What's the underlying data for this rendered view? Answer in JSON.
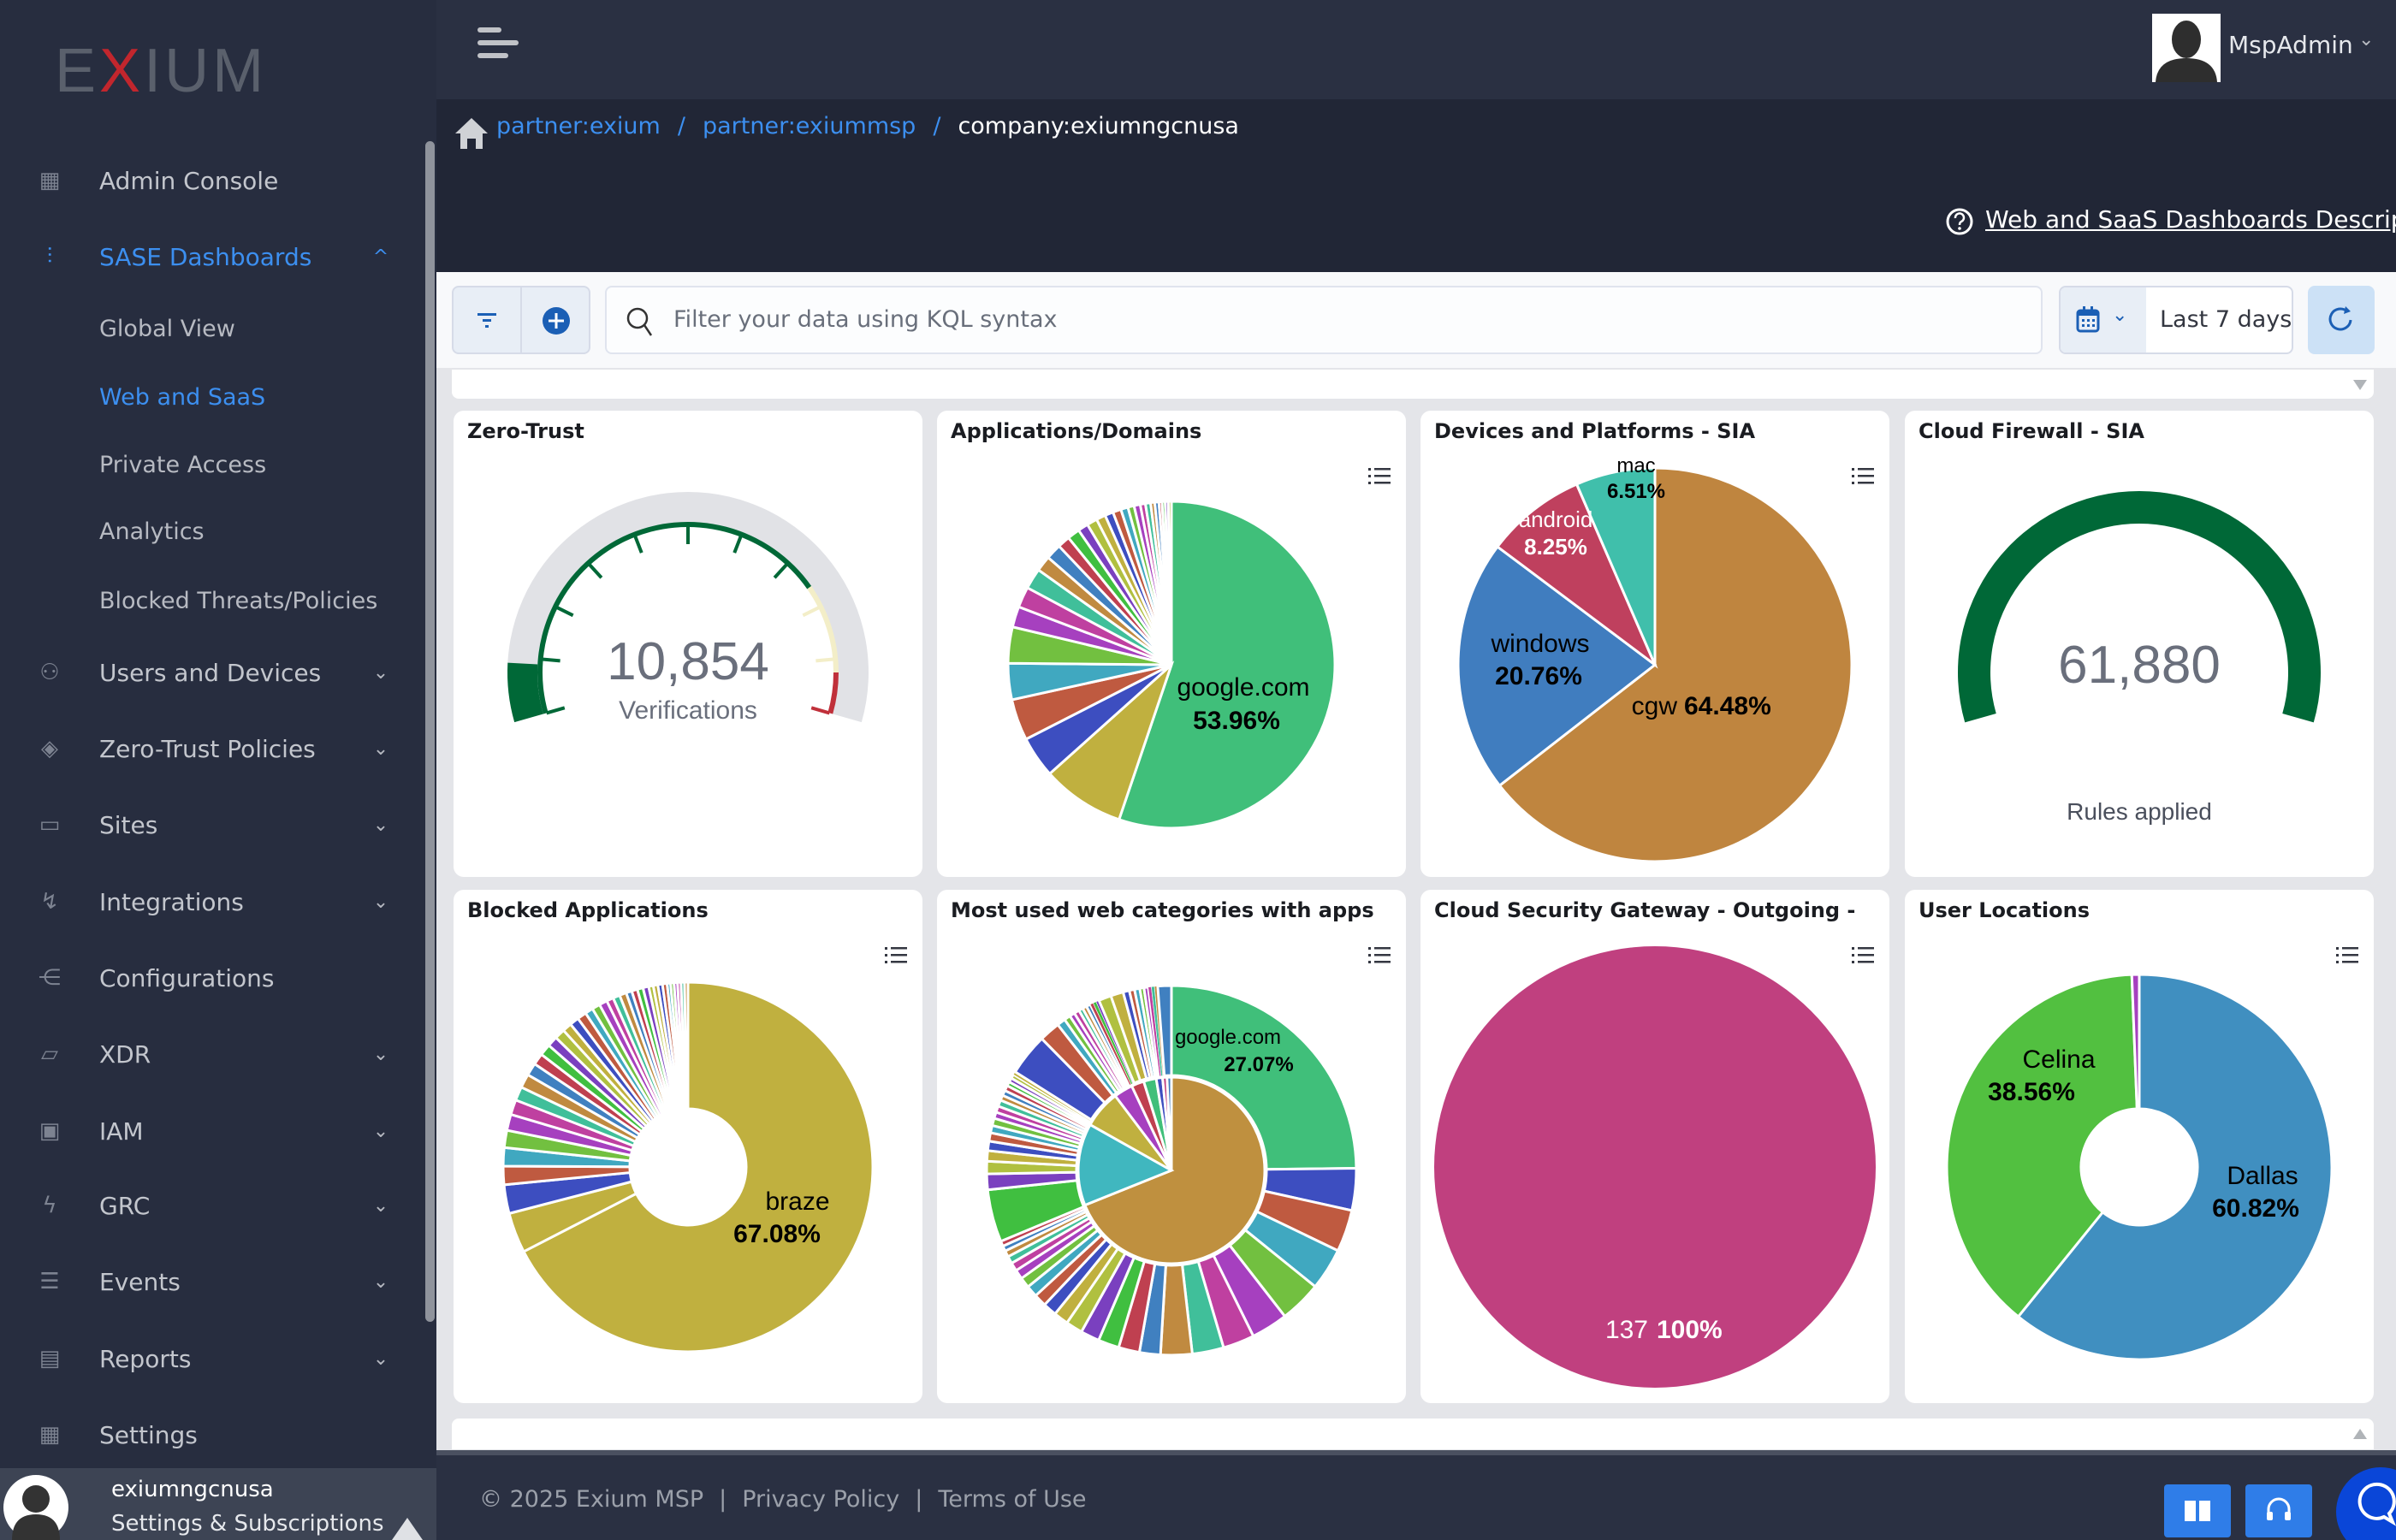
{
  "app": {
    "logo": "EXIUM"
  },
  "sidebar": {
    "items": [
      {
        "label": "Admin Console",
        "icon": "grid-icon",
        "chevron": ""
      },
      {
        "label": "SASE Dashboards",
        "icon": "sliders-icon",
        "chevron": "^"
      },
      {
        "label": "Users and Devices",
        "icon": "users-icon",
        "chevron": "⌄"
      },
      {
        "label": "Zero-Trust Policies",
        "icon": "layers-icon",
        "chevron": "⌄"
      },
      {
        "label": "Sites",
        "icon": "monitor-icon",
        "chevron": "⌄"
      },
      {
        "label": "Integrations",
        "icon": "route-icon",
        "chevron": "⌄"
      },
      {
        "label": "Configurations",
        "icon": "share-icon",
        "chevron": ""
      },
      {
        "label": "XDR",
        "icon": "cast-icon",
        "chevron": "⌄"
      },
      {
        "label": "IAM",
        "icon": "board-icon",
        "chevron": "⌄"
      },
      {
        "label": "GRC",
        "icon": "bolt-icon",
        "chevron": "⌄"
      },
      {
        "label": "Events",
        "icon": "list-icon",
        "chevron": "⌄"
      },
      {
        "label": "Reports",
        "icon": "archive-icon",
        "chevron": "⌄"
      },
      {
        "label": "Settings",
        "icon": "grid-icon",
        "chevron": ""
      }
    ],
    "sub_items": [
      "Global View",
      "Web and SaaS",
      "Private Access",
      "Analytics",
      "Blocked Threats/Policies"
    ],
    "active_item": "SASE Dashboards",
    "active_sub": "Web and SaaS",
    "user": {
      "name": "exiumngcnusa",
      "link": "Settings & Subscriptions"
    }
  },
  "header": {
    "user": "MspAdmin"
  },
  "breadcrumb": [
    "partner:exium",
    "partner:exiummsp",
    "company:exiumngcnusa"
  ],
  "help_link": "Web and SaaS Dashboards Description",
  "toolbar": {
    "search_placeholder": "Filter your data using KQL syntax",
    "date_range": "Last 7 days"
  },
  "colors": {
    "accent": "#3c8ff0",
    "sidebar": "#272d3f",
    "header": "#2a3042",
    "gauge_green": "#006837"
  },
  "cards": {
    "zero_trust": {
      "title": "Zero-Trust",
      "value": "10,854",
      "label": "Verifications",
      "fill_fraction": 0.09
    },
    "apps": {
      "title": "Applications/Domains"
    },
    "devices": {
      "title": "Devices and Platforms - SIA"
    },
    "firewall": {
      "title": "Cloud Firewall - SIA",
      "value": "61,880",
      "label": "Rules applied",
      "fill_fraction": 1.0
    },
    "blocked": {
      "title": "Blocked Applications"
    },
    "webcat": {
      "title": "Most used web categories with apps"
    },
    "csg": {
      "title": "Cloud Security Gateway - Outgoing - ..."
    },
    "locations": {
      "title": "User Locations"
    }
  },
  "chart_data": [
    {
      "type": "gauge",
      "title": "Zero-Trust",
      "value": 10854,
      "label": "Verifications"
    },
    {
      "type": "pie",
      "title": "Applications/Domains",
      "slices": [
        {
          "label": "google.com",
          "value": 53.96,
          "pct": "53.96%",
          "color": "#40bf7a"
        }
      ],
      "unlabeled_values": [
        8,
        4,
        4,
        3.5,
        3.5,
        2,
        2,
        2,
        1.5,
        1.5,
        1.2,
        1.2,
        1,
        1,
        0.9,
        0.8,
        0.8,
        0.7,
        0.6,
        0.6,
        0.5,
        0.5,
        0.4,
        0.4,
        0.3,
        0.3,
        0.3,
        0.3
      ]
    },
    {
      "type": "pie",
      "title": "Devices and Platforms - SIA",
      "slices": [
        {
          "label": "cgw",
          "value": 64.48,
          "pct": "64.48%",
          "color": "#bf853f"
        },
        {
          "label": "windows",
          "value": 20.76,
          "pct": "20.76%",
          "color": "#407dbf"
        },
        {
          "label": "android",
          "value": 8.25,
          "pct": "8.25%",
          "color": "#bf405e"
        },
        {
          "label": "mac",
          "value": 6.51,
          "pct": "6.51%",
          "color": "#40bfab"
        }
      ]
    },
    {
      "type": "gauge",
      "title": "Cloud Firewall - SIA",
      "value": 61880,
      "label": "Rules applied"
    },
    {
      "type": "donut",
      "title": "Blocked Applications",
      "slices": [
        {
          "label": "braze",
          "value": 67.08,
          "pct": "67.08%",
          "color": "#c0b03f"
        }
      ],
      "unlabeled_values": [
        3.5,
        2.5,
        1.6,
        1.6,
        1.5,
        1.4,
        1.3,
        1.2,
        1.2,
        1.1,
        1,
        1,
        0.9,
        0.9,
        0.8,
        0.8,
        0.8,
        0.7,
        0.7,
        0.7,
        0.6,
        0.6,
        0.6,
        0.5,
        0.5,
        0.5,
        0.5,
        0.4,
        0.4,
        0.4,
        0.4,
        0.3,
        0.3,
        0.3,
        0.3,
        0.3,
        0.3
      ]
    },
    {
      "type": "sunburst",
      "title": "Most used web categories with apps",
      "inner_values": [
        63,
        13,
        6,
        3,
        2,
        2,
        1,
        0.7,
        0.7
      ],
      "inner_colors": [
        "#bf903f",
        "#40b7bf",
        "#c0b03f",
        "#a640bf",
        "#bf4050",
        "#40bf7a",
        "#3d4ec0",
        "#bf4080",
        "#407dbf"
      ],
      "outer_slices": [
        {
          "label": "google.com",
          "value": 27.07,
          "pct": "27.07%",
          "color": "#40bf7a"
        }
      ],
      "outer_values": [
        4,
        4,
        4,
        4,
        3.5,
        3,
        3,
        3,
        2,
        2,
        2,
        1.8,
        1.6,
        1.4,
        1.3,
        1.2,
        1.1,
        1,
        0.9,
        0.8,
        0.7,
        0.6,
        0.5,
        0.5,
        5,
        1.5,
        1.2,
        1,
        0.9,
        0.8,
        0.7,
        0.7,
        0.6,
        0.6,
        0.6,
        0.5,
        0.5,
        0.5,
        0.4,
        0.4,
        0.4,
        0.3,
        4,
        2,
        0.8,
        0.6,
        0.5,
        0.5,
        0.4,
        0.4,
        0.4,
        0.3,
        0.3,
        0.3,
        1.2,
        1.2,
        0.6,
        0.5,
        0.5,
        0.4,
        0.4,
        0.3,
        0.3,
        0.3,
        1.3
      ]
    },
    {
      "type": "pie",
      "title": "Cloud Security Gateway - Outgoing - ...",
      "slices": [
        {
          "label": "137",
          "value": 137,
          "pct": "100%",
          "color": "#c0407f"
        }
      ]
    },
    {
      "type": "donut",
      "title": "User Locations",
      "slices": [
        {
          "label": "Dallas",
          "value": 60.82,
          "pct": "60.82%",
          "color": "#408fc0"
        },
        {
          "label": "Celina",
          "value": 38.56,
          "pct": "38.56%",
          "color": "#52c040"
        },
        {
          "label": "",
          "value": 0.62,
          "pct": "",
          "color": "#a640bf"
        }
      ]
    }
  ],
  "palette": [
    "#c0b03f",
    "#3d4ec0",
    "#bf5a40",
    "#40a8c0",
    "#72c040",
    "#a640bf",
    "#bf40a0",
    "#40bf9a",
    "#c08a40",
    "#4080c0",
    "#bf4050",
    "#40bf40",
    "#7a40bf",
    "#b0c040"
  ],
  "footer": {
    "copyright": "© 2025 Exium MSP",
    "privacy": "Privacy Policy",
    "terms": "Terms of Use",
    "sep": "|"
  }
}
